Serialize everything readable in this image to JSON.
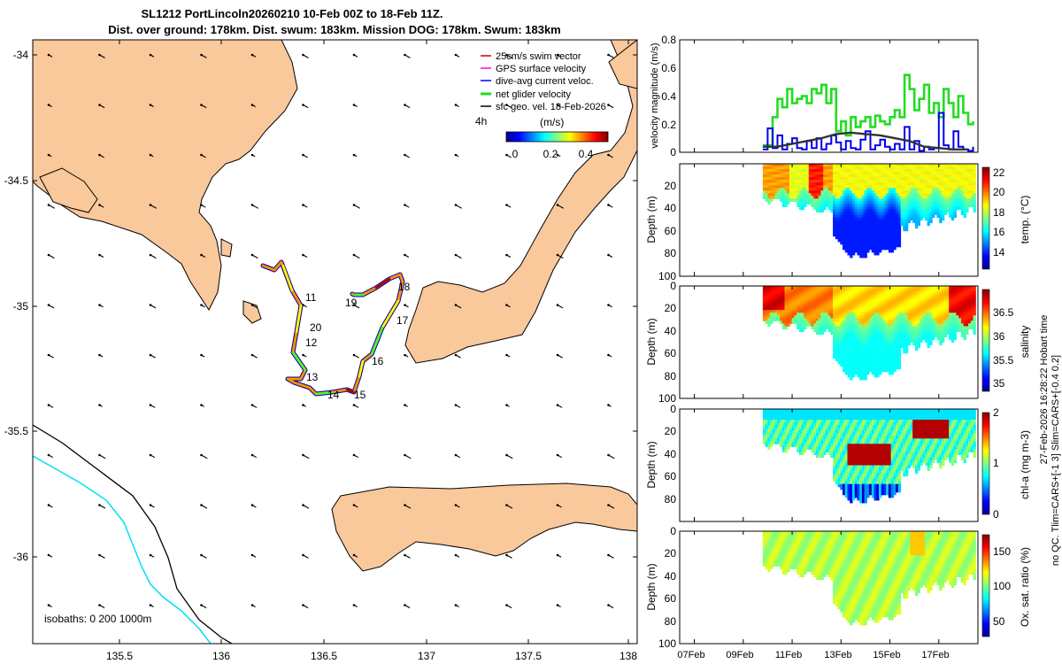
{
  "title": {
    "line1": "SL1212 PortLincoln20260210 10-Feb 00Z to 18-Feb 11Z.",
    "line2": "Dist. over ground: 178km. Dist. swum: 183km. Mission DOG: 178km. Swum: 183km"
  },
  "map": {
    "x_ticks": [
      "135.5",
      "136",
      "136.5",
      "137",
      "137.5",
      "138"
    ],
    "y_ticks": [
      "-34",
      "-34.5",
      "-35",
      "-35.5",
      "-36"
    ],
    "legend": [
      "25cm/s swim vector",
      "GPS surface velocity",
      "dive-avg current veloc.",
      "net glider velocity",
      "sfc geo. vel. 18-Feb-2026"
    ],
    "legend_colors": [
      "#cc0000",
      "#ff00ff",
      "#0000ff",
      "#22dd22",
      "#000000"
    ],
    "interval": "4h",
    "cbar_label": "(m/s)",
    "cbar_ticks": [
      "0",
      "0.2",
      "0.4"
    ],
    "day_labels": [
      "11",
      "20",
      "12",
      "13",
      "14",
      "15",
      "16",
      "17",
      "18",
      "19"
    ],
    "isobaths": "isobaths: 0   200  1000m",
    "land_color": "#f9c89b",
    "track_colors": [
      "#0000a0",
      "#00b0ff",
      "#40ff40",
      "#ffff00",
      "#ff8000",
      "#a00000"
    ]
  },
  "right_annotation": {
    "hobart": "27-Feb-2026 16:28:22 Hobart time",
    "limits": "no QC. Tlim=CARS+[-1 3] Slim=CARS+[-0.4 0.2]"
  },
  "chart_data": [
    {
      "type": "line",
      "ylabel": "velocity magnitude (m/s)",
      "ylim": [
        0,
        0.8
      ],
      "yticks": [
        "0",
        "0.2",
        "0.4",
        "0.6",
        "0.8"
      ],
      "series": [
        {
          "name": "net glider velocity",
          "color": "#22dd22",
          "x": [
            9.8,
            10.0,
            10.2,
            10.4,
            10.6,
            10.8,
            11.0,
            11.2,
            11.4,
            11.6,
            11.8,
            12.0,
            12.2,
            12.4,
            12.6,
            12.8,
            13.0,
            13.2,
            13.4,
            13.6,
            13.8,
            14.0,
            14.2,
            14.4,
            14.6,
            14.8,
            15.0,
            15.2,
            15.4,
            15.6,
            15.8,
            16.0,
            16.2,
            16.4,
            16.6,
            16.8,
            17.0,
            17.2,
            17.4,
            17.6,
            17.8,
            18.0,
            18.2,
            18.4
          ],
          "values": [
            0.05,
            0.05,
            0.25,
            0.38,
            0.32,
            0.45,
            0.35,
            0.38,
            0.4,
            0.35,
            0.45,
            0.42,
            0.48,
            0.35,
            0.45,
            0.15,
            0.22,
            0.12,
            0.25,
            0.18,
            0.22,
            0.25,
            0.18,
            0.26,
            0.22,
            0.2,
            0.25,
            0.3,
            0.25,
            0.55,
            0.45,
            0.3,
            0.38,
            0.48,
            0.28,
            0.35,
            0.25,
            0.45,
            0.35,
            0.25,
            0.4,
            0.28,
            0.2,
            0.22
          ]
        },
        {
          "name": "dive-avg current veloc.",
          "color": "#0000ee",
          "x": [
            9.8,
            10.0,
            10.2,
            10.4,
            10.6,
            10.8,
            11.0,
            11.2,
            11.4,
            11.6,
            11.8,
            12.0,
            12.2,
            12.4,
            12.6,
            12.8,
            13.0,
            13.2,
            13.4,
            13.6,
            13.8,
            14.0,
            14.2,
            14.4,
            14.6,
            14.8,
            15.0,
            15.2,
            15.4,
            15.6,
            15.8,
            16.0,
            16.2,
            16.4,
            16.6,
            16.8,
            17.0,
            17.2,
            17.4,
            17.6,
            17.8,
            18.0,
            18.2,
            18.4
          ],
          "values": [
            0.02,
            0.17,
            0.03,
            0.12,
            0.02,
            0.06,
            0.1,
            0.03,
            0.02,
            0.08,
            0.03,
            0.1,
            0.02,
            0.06,
            0.12,
            0.07,
            0.02,
            0.08,
            0.03,
            0.02,
            0.09,
            0.15,
            0.02,
            0.05,
            0.09,
            0.04,
            0.02,
            0.06,
            0.02,
            0.18,
            0.02,
            0.08,
            0.01,
            0.04,
            0.02,
            0.03,
            0.28,
            0.05,
            0.02,
            0.15,
            0.04,
            0.02,
            0.01,
            0.04
          ]
        },
        {
          "name": "sfc geo. vel.",
          "color": "#333333",
          "x": [
            9.8,
            10.4,
            11.0,
            11.6,
            12.2,
            12.8,
            13.4,
            14.0,
            14.6,
            15.2,
            15.8,
            16.4,
            17.0,
            17.6,
            18.2
          ],
          "values": [
            0.04,
            0.04,
            0.06,
            0.08,
            0.1,
            0.13,
            0.14,
            0.13,
            0.12,
            0.1,
            0.08,
            0.04,
            0.03,
            0.02,
            0.02
          ]
        }
      ]
    },
    {
      "type": "heatmap",
      "ylabel": "Depth (m)",
      "clabel": "temp. (°C)",
      "yticks": [
        "20",
        "40",
        "60",
        "80",
        "100"
      ],
      "cticks": [
        "14",
        "16",
        "18",
        "20",
        "22"
      ],
      "clim": [
        13,
        23
      ]
    },
    {
      "type": "heatmap",
      "ylabel": "Depth (m)",
      "clabel": "salinity",
      "yticks": [
        "0",
        "20",
        "40",
        "60",
        "80",
        "100"
      ],
      "cticks": [
        "35",
        "35.5",
        "36",
        "36.5"
      ],
      "clim": [
        34.8,
        36.9
      ]
    },
    {
      "type": "heatmap",
      "ylabel": "Depth (m)",
      "clabel": "chl-a (mg m-3)",
      "yticks": [
        "0",
        "20",
        "40",
        "60",
        "80"
      ],
      "cticks": [
        "0",
        "1",
        "2"
      ],
      "clim": [
        0,
        2
      ]
    },
    {
      "type": "heatmap",
      "ylabel": "Depth (m)",
      "clabel": "Ox. sat. ratio (%)",
      "yticks": [
        "0",
        "20",
        "40",
        "60",
        "80",
        "100"
      ],
      "cticks": [
        "50",
        "100",
        "150"
      ],
      "clim": [
        20,
        170
      ]
    }
  ],
  "time_axis": {
    "labels": [
      "07Feb",
      "09Feb",
      "11Feb",
      "13Feb",
      "15Feb",
      "17Feb"
    ],
    "days": [
      7,
      9,
      11,
      13,
      15,
      17
    ],
    "start": 6.4,
    "end": 18.6
  }
}
